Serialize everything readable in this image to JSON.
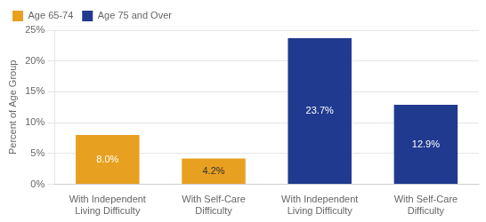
{
  "chart_data": {
    "type": "bar",
    "categories": [
      "With Independent\nLiving Difficulty",
      "With Self-Care\nDifficulty",
      "With Independent\nLiving Difficulty",
      "With Self-Care\nDifficulty"
    ],
    "series": [
      {
        "name": "Age 65-74",
        "color": "#E8A020",
        "values": [
          8.0,
          4.2,
          null,
          null
        ],
        "value_labels": [
          "8.0%",
          "4.2%",
          null,
          null
        ]
      },
      {
        "name": "Age 75 and Over",
        "color": "#1F3A8F",
        "values": [
          null,
          null,
          23.7,
          12.9
        ],
        "value_labels": [
          null,
          null,
          "23.7%",
          "12.9%"
        ]
      }
    ],
    "ylabel": "Percent of Age Group",
    "ylim": [
      0,
      25
    ],
    "yticks": [
      {
        "value": 0,
        "label": "0%"
      },
      {
        "value": 5,
        "label": "5%"
      },
      {
        "value": 10,
        "label": "10%"
      },
      {
        "value": 15,
        "label": "15%"
      },
      {
        "value": 20,
        "label": "20%"
      },
      {
        "value": 25,
        "label": "25%"
      }
    ],
    "grid": true,
    "legend": "upper left",
    "data_labels": true
  }
}
